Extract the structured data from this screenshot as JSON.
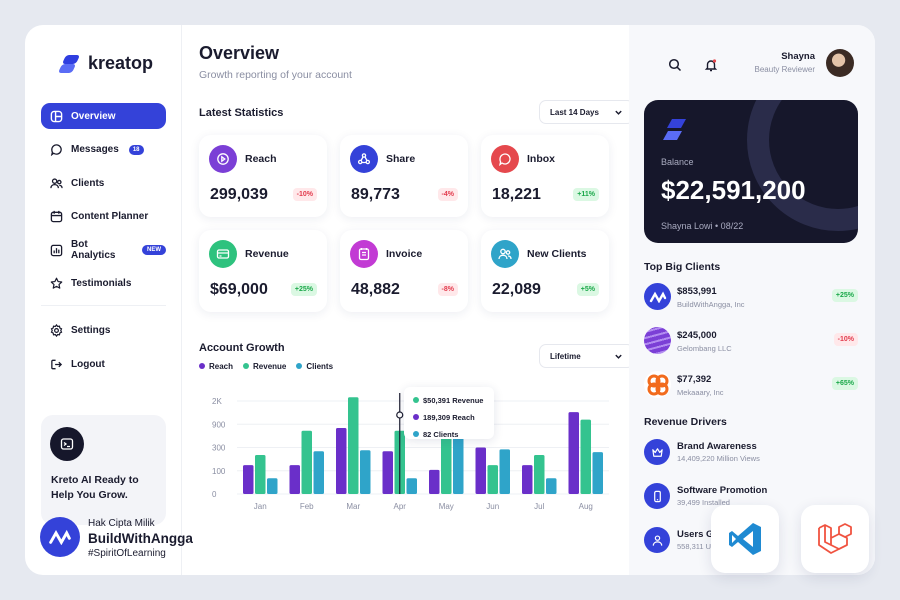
{
  "app": {
    "name": "kreatop"
  },
  "sidebar": {
    "items": [
      {
        "label": "Overview",
        "icon": "layout-icon",
        "active": true
      },
      {
        "label": "Messages",
        "icon": "chat-icon",
        "badge": "18"
      },
      {
        "label": "Clients",
        "icon": "users-icon"
      },
      {
        "label": "Content Planner",
        "icon": "calendar-icon"
      },
      {
        "label": "Bot Analytics",
        "icon": "chart-icon",
        "badge": "NEW"
      },
      {
        "label": "Testimonials",
        "icon": "star-icon"
      }
    ],
    "secondary": [
      {
        "label": "Settings",
        "icon": "gear-icon"
      },
      {
        "label": "Logout",
        "icon": "logout-icon"
      }
    ],
    "ai_card": {
      "text": "Kreto AI Ready to Help You Grow."
    }
  },
  "header": {
    "title": "Overview",
    "subtitle": "Growth reporting of your account"
  },
  "statistics": {
    "title": "Latest Statistics",
    "range": "Last 14 Days",
    "cards": [
      {
        "label": "Reach",
        "value": "299,039",
        "change": "-10%",
        "trend": "neg",
        "color": "#7b3fd6",
        "icon": "play-icon"
      },
      {
        "label": "Share",
        "value": "89,773",
        "change": "-4%",
        "trend": "neg",
        "color": "#3442d9",
        "icon": "share-icon"
      },
      {
        "label": "Inbox",
        "value": "18,221",
        "change": "+11%",
        "trend": "pos",
        "color": "#e5484d",
        "icon": "chat-icon"
      },
      {
        "label": "Revenue",
        "value": "$69,000",
        "change": "+25%",
        "trend": "pos",
        "color": "#2ec27e",
        "icon": "card-icon"
      },
      {
        "label": "Invoice",
        "value": "48,882",
        "change": "-8%",
        "trend": "neg",
        "color": "#c23bd4",
        "icon": "receipt-icon"
      },
      {
        "label": "New Clients",
        "value": "22,089",
        "change": "+5%",
        "trend": "pos",
        "color": "#2fa4c9",
        "icon": "users-icon"
      }
    ]
  },
  "growth": {
    "title": "Account Growth",
    "range": "Lifetime",
    "tooltip": [
      {
        "text": "$50,391 Revenue",
        "color": "#34c38f"
      },
      {
        "text": "189,309 Reach",
        "color": "#6a2fc9"
      },
      {
        "text": "82 Clients",
        "color": "#2fa4c9"
      }
    ]
  },
  "chart_data": {
    "type": "bar",
    "categories": [
      "Jan",
      "Feb",
      "Mar",
      "Apr",
      "May",
      "Jun",
      "Jul",
      "Aug"
    ],
    "y_ticks": [
      "2K",
      "900",
      "300",
      "100",
      "0"
    ],
    "series": [
      {
        "name": "Reach",
        "color": "#6a2fc9",
        "values": [
          0.31,
          0.31,
          0.71,
          0.46,
          0.26,
          0.5,
          0.31,
          0.88
        ]
      },
      {
        "name": "Revenue",
        "color": "#34c38f",
        "values": [
          0.42,
          0.68,
          1.04,
          0.68,
          0.88,
          0.31,
          0.42,
          0.8
        ]
      },
      {
        "name": "Clients",
        "color": "#2fa4c9",
        "values": [
          0.17,
          0.46,
          0.47,
          0.17,
          0.88,
          0.48,
          0.17,
          0.45
        ]
      }
    ],
    "highlight_category": "Apr",
    "legend": "top-left"
  },
  "user": {
    "name": "Shayna",
    "role": "Beauty Reviewer"
  },
  "balance": {
    "label": "Balance",
    "amount": "$22,591,200",
    "holder": "Shayna Lowi • 08/22"
  },
  "top_clients": {
    "title": "Top Big Clients",
    "items": [
      {
        "value": "$853,991",
        "name": "BuildWithAngga, Inc",
        "change": "+25%",
        "trend": "pos"
      },
      {
        "value": "$245,000",
        "name": "Gelombang LLC",
        "change": "-10%",
        "trend": "neg"
      },
      {
        "value": "$77,392",
        "name": "Mekaaary, Inc",
        "change": "+65%",
        "trend": "pos"
      }
    ]
  },
  "drivers": {
    "title": "Revenue Drivers",
    "items": [
      {
        "title": "Brand Awareness",
        "sub": "14,409,220 Million Views",
        "icon": "crown-icon"
      },
      {
        "title": "Software Promotion",
        "sub": "39,499 Installed",
        "icon": "phone-icon"
      },
      {
        "title": "Users G",
        "sub": "558,311 U",
        "icon": "user-icon"
      }
    ]
  },
  "watermark": {
    "line1": "Hak Cipta Milik",
    "line2": "BuildWithAngga",
    "line3": "#SpiritOfLearning"
  }
}
